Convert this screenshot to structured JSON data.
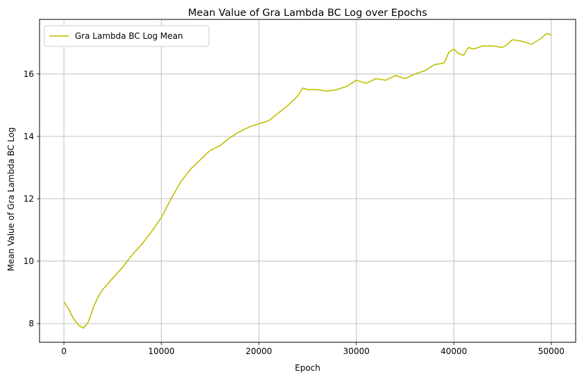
{
  "chart_data": {
    "type": "line",
    "title": "Mean Value of Gra Lambda BC Log over Epochs",
    "xlabel": "Epoch",
    "ylabel": "Mean Value of Gra Lambda BC Log",
    "xlim": [
      -2500,
      52500
    ],
    "ylim": [
      7.4,
      17.75
    ],
    "x_ticks": [
      0,
      10000,
      20000,
      30000,
      40000,
      50000
    ],
    "x_tick_labels": [
      "0",
      "10000",
      "20000",
      "30000",
      "40000",
      "50000"
    ],
    "y_ticks": [
      8,
      10,
      12,
      14,
      16
    ],
    "y_tick_labels": [
      "8",
      "10",
      "12",
      "14",
      "16"
    ],
    "grid": true,
    "legend_position": "top-left",
    "series": [
      {
        "name": "Gra Lambda BC Log Mean",
        "color": "#bfbf00",
        "x": [
          0,
          200,
          500,
          1000,
          1500,
          2000,
          2500,
          3000,
          3500,
          4000,
          5000,
          6000,
          7000,
          8000,
          9000,
          10000,
          11000,
          12000,
          13000,
          14000,
          15000,
          16000,
          17000,
          18000,
          19000,
          20000,
          21000,
          22000,
          23000,
          24000,
          24500,
          25000,
          26000,
          27000,
          28000,
          29000,
          30000,
          31000,
          32000,
          33000,
          34000,
          35000,
          36000,
          37000,
          38000,
          39000,
          39500,
          40000,
          40500,
          41000,
          41500,
          42000,
          43000,
          44000,
          45000,
          45500,
          46000,
          47000,
          48000,
          49000,
          49500,
          50000
        ],
        "y": [
          8.7,
          8.6,
          8.45,
          8.15,
          7.95,
          7.85,
          8.05,
          8.5,
          8.85,
          9.1,
          9.45,
          9.8,
          10.2,
          10.55,
          10.95,
          11.4,
          12.0,
          12.55,
          12.95,
          13.25,
          13.55,
          13.7,
          13.95,
          14.15,
          14.3,
          14.4,
          14.5,
          14.75,
          15.0,
          15.3,
          15.55,
          15.5,
          15.5,
          15.45,
          15.5,
          15.6,
          15.8,
          15.7,
          15.85,
          15.8,
          15.95,
          15.85,
          16.0,
          16.1,
          16.3,
          16.35,
          16.7,
          16.8,
          16.65,
          16.6,
          16.85,
          16.8,
          16.9,
          16.9,
          16.85,
          16.95,
          17.1,
          17.05,
          16.95,
          17.15,
          17.3,
          17.25
        ]
      }
    ]
  }
}
